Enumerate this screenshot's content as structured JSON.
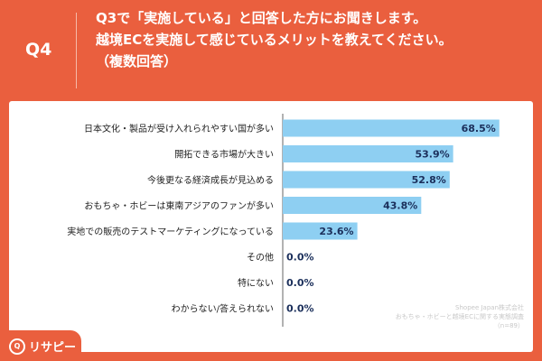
{
  "header": {
    "question_no": "Q4",
    "question_lines": [
      "Q3で「実施している」と回答した方にお聞きします。",
      "越境ECを実施して感じているメリットを教えてください。",
      "（複数回答）"
    ]
  },
  "chart_data": {
    "type": "bar",
    "orientation": "horizontal",
    "categories": [
      "日本文化・製品が受け入れられやすい国が多い",
      "開拓できる市場が大きい",
      "今後更なる経済成長が見込める",
      "おもちゃ・ホビーは東南アジアのファンが多い",
      "実地での販売のテストマーケティングになっている",
      "その他",
      "特にない",
      "わからない/答えられない"
    ],
    "values": [
      68.5,
      53.9,
      52.8,
      43.8,
      23.6,
      0.0,
      0.0,
      0.0
    ],
    "value_labels": [
      "68.5%",
      "53.9%",
      "52.8%",
      "43.8%",
      "23.6%",
      "0.0%",
      "0.0%",
      "0.0%"
    ],
    "xlim": [
      0,
      100
    ],
    "bar_color": "#8ecff2",
    "grid": false,
    "legend": "none"
  },
  "source": {
    "line1": "Shopee Japan株式会社",
    "line2": "おもちゃ・ホビーと越境ECに関する実態調査",
    "line3": "（n=89）"
  },
  "logo": {
    "mark": "Q",
    "text": "リサピー",
    "icon": "chat-bubble-icon"
  },
  "colors": {
    "background": "#ea5f3e",
    "card": "#ffffff",
    "bar": "#8ecff2",
    "value_text": "#1b2f5b"
  }
}
